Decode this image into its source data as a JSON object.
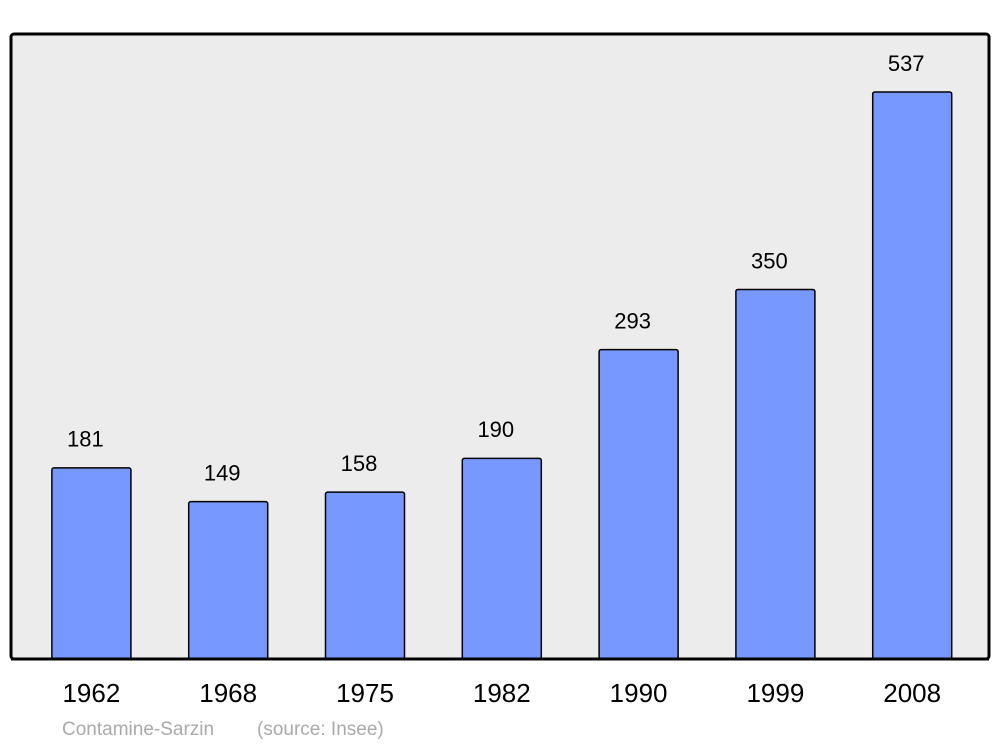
{
  "chart_data": {
    "type": "bar",
    "categories": [
      "1962",
      "1968",
      "1975",
      "1982",
      "1990",
      "1999",
      "2008"
    ],
    "values": [
      181,
      149,
      158,
      190,
      293,
      350,
      537
    ],
    "color": "#7799ff",
    "place": "Contamine-Sarzin",
    "source": "(source: Insee)"
  }
}
